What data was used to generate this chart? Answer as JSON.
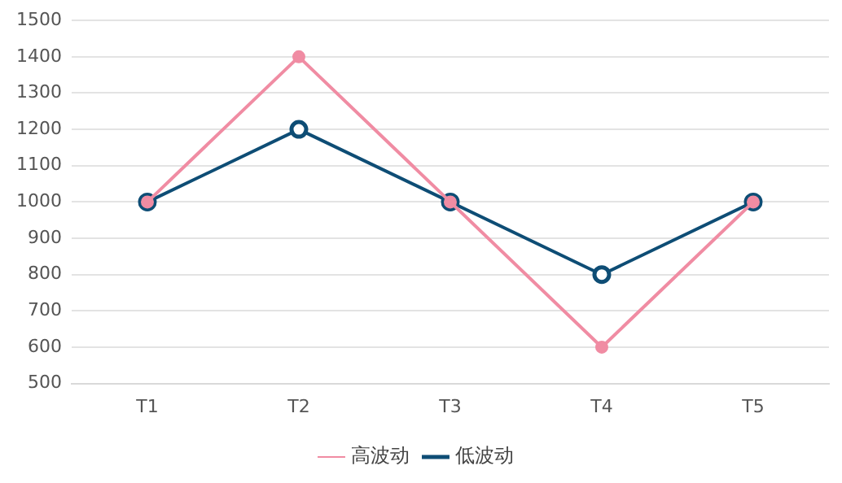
{
  "chart_data": {
    "type": "line",
    "categories": [
      "T1",
      "T2",
      "T3",
      "T4",
      "T5"
    ],
    "series": [
      {
        "name": "低波动",
        "color": "#0e4d75",
        "values": [
          1000,
          1200,
          1000,
          800,
          1000
        ]
      },
      {
        "name": "高波动",
        "color": "#f08ca3",
        "values": [
          1000,
          1400,
          1000,
          600,
          1000
        ]
      }
    ],
    "ylim": [
      500,
      1500
    ],
    "yticks": [
      500,
      600,
      700,
      800,
      900,
      1000,
      1100,
      1200,
      1300,
      1400,
      1500
    ],
    "grid": "y",
    "legend": "bottom",
    "marker": "circle"
  }
}
